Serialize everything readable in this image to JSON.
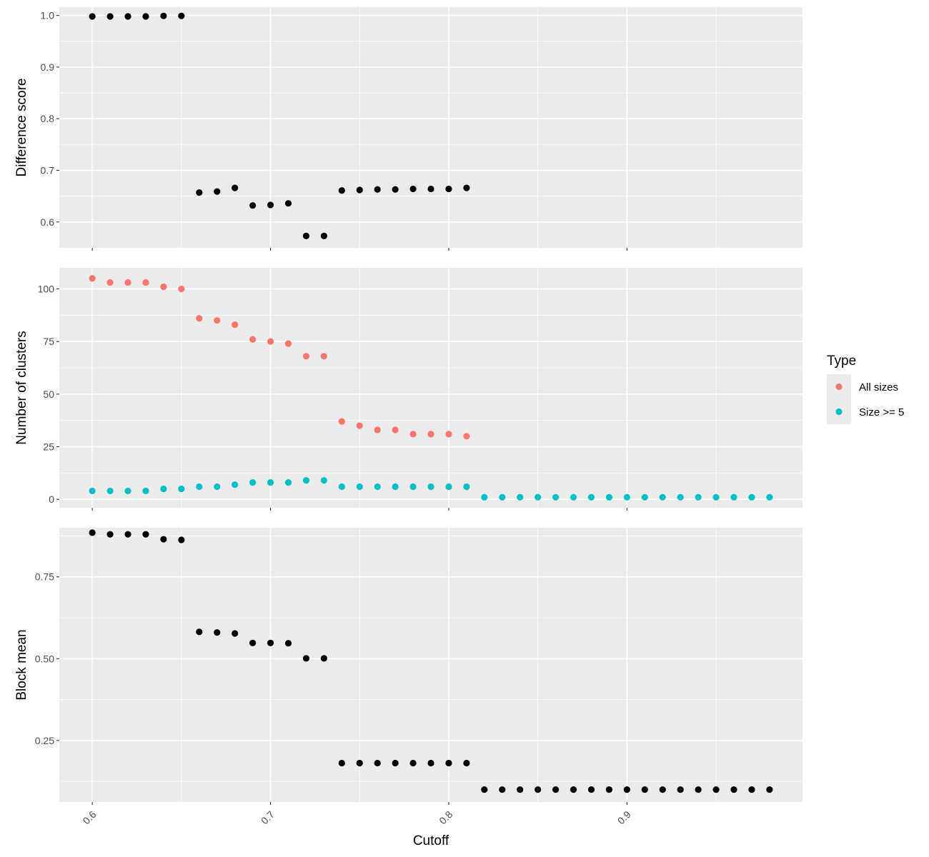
{
  "chart_data": {
    "type": "scatter",
    "shared_x": {
      "label": "Cutoff",
      "ticks": [
        0.6,
        0.7,
        0.8,
        0.9
      ],
      "tick_labels": [
        "0.6",
        "0.7",
        "0.8",
        "0.9"
      ],
      "xlim": [
        0.5815,
        0.9985
      ]
    },
    "legend": {
      "title": "Type",
      "position": "right",
      "entries": [
        {
          "label": "All sizes",
          "color": "#F8766D"
        },
        {
          "label": "Size >= 5",
          "color": "#00BFC4"
        }
      ]
    },
    "panels": [
      {
        "ylabel": "Difference score",
        "ylim": [
          0.55,
          1.016
        ],
        "yticks": [
          0.6,
          0.7,
          0.8,
          0.9,
          1.0
        ],
        "ytick_labels": [
          "0.6",
          "0.7",
          "0.8",
          "0.9",
          "1.0"
        ],
        "series": [
          {
            "color": "#000000",
            "x": [
              0.6,
              0.61,
              0.62,
              0.63,
              0.64,
              0.65,
              0.66,
              0.67,
              0.68,
              0.69,
              0.7,
              0.71,
              0.72,
              0.73,
              0.74,
              0.75,
              0.76,
              0.77,
              0.78,
              0.79,
              0.8,
              0.81
            ],
            "y": [
              0.998,
              0.998,
              0.998,
              0.998,
              0.999,
              0.999,
              0.657,
              0.659,
              0.666,
              0.632,
              0.633,
              0.636,
              0.573,
              0.573,
              0.661,
              0.662,
              0.663,
              0.663,
              0.664,
              0.664,
              0.664,
              0.666
            ]
          }
        ]
      },
      {
        "ylabel": "Number of clusters",
        "ylim": [
          -4,
          110
        ],
        "yticks": [
          0,
          25,
          50,
          75,
          100
        ],
        "ytick_labels": [
          "0",
          "25",
          "50",
          "75",
          "100"
        ],
        "series": [
          {
            "name": "All sizes",
            "color": "#F8766D",
            "x": [
              0.6,
              0.61,
              0.62,
              0.63,
              0.64,
              0.65,
              0.66,
              0.67,
              0.68,
              0.69,
              0.7,
              0.71,
              0.72,
              0.73,
              0.74,
              0.75,
              0.76,
              0.77,
              0.78,
              0.79,
              0.8,
              0.81
            ],
            "y": [
              105,
              103,
              103,
              103,
              101,
              100,
              86,
              85,
              83,
              76,
              75,
              74,
              68,
              68,
              37,
              35,
              33,
              33,
              31,
              31,
              31,
              30
            ]
          },
          {
            "name": "Size >= 5",
            "color": "#00BFC4",
            "x": [
              0.6,
              0.61,
              0.62,
              0.63,
              0.64,
              0.65,
              0.66,
              0.67,
              0.68,
              0.69,
              0.7,
              0.71,
              0.72,
              0.73,
              0.74,
              0.75,
              0.76,
              0.77,
              0.78,
              0.79,
              0.8,
              0.81,
              0.82,
              0.83,
              0.84,
              0.85,
              0.86,
              0.87,
              0.88,
              0.89,
              0.9,
              0.91,
              0.92,
              0.93,
              0.94,
              0.95,
              0.96,
              0.97,
              0.98
            ],
            "y": [
              4,
              4,
              4,
              4,
              5,
              5,
              6,
              6,
              7,
              8,
              8,
              8,
              9,
              9,
              6,
              6,
              6,
              6,
              6,
              6,
              6,
              6,
              1,
              1,
              1,
              1,
              1,
              1,
              1,
              1,
              1,
              1,
              1,
              1,
              1,
              1,
              1,
              1,
              1
            ]
          }
        ]
      },
      {
        "ylabel": "Block mean",
        "ylim": [
          0.062,
          0.9
        ],
        "yticks": [
          0.25,
          0.5,
          0.75
        ],
        "ytick_labels": [
          "0.25",
          "0.50",
          "0.75"
        ],
        "series": [
          {
            "color": "#000000",
            "x": [
              0.6,
              0.61,
              0.62,
              0.63,
              0.64,
              0.65,
              0.66,
              0.67,
              0.68,
              0.69,
              0.7,
              0.71,
              0.72,
              0.73,
              0.74,
              0.75,
              0.76,
              0.77,
              0.78,
              0.79,
              0.8,
              0.81,
              0.82,
              0.83,
              0.84,
              0.85,
              0.86,
              0.87,
              0.88,
              0.89,
              0.9,
              0.91,
              0.92,
              0.93,
              0.94,
              0.95,
              0.96,
              0.97,
              0.98
            ],
            "y": [
              0.885,
              0.88,
              0.88,
              0.88,
              0.865,
              0.863,
              0.582,
              0.58,
              0.577,
              0.548,
              0.548,
              0.547,
              0.501,
              0.501,
              0.181,
              0.181,
              0.181,
              0.181,
              0.181,
              0.181,
              0.181,
              0.181,
              0.1,
              0.1,
              0.1,
              0.1,
              0.1,
              0.1,
              0.1,
              0.1,
              0.1,
              0.1,
              0.1,
              0.1,
              0.1,
              0.1,
              0.1,
              0.1,
              0.1
            ]
          }
        ]
      }
    ]
  }
}
